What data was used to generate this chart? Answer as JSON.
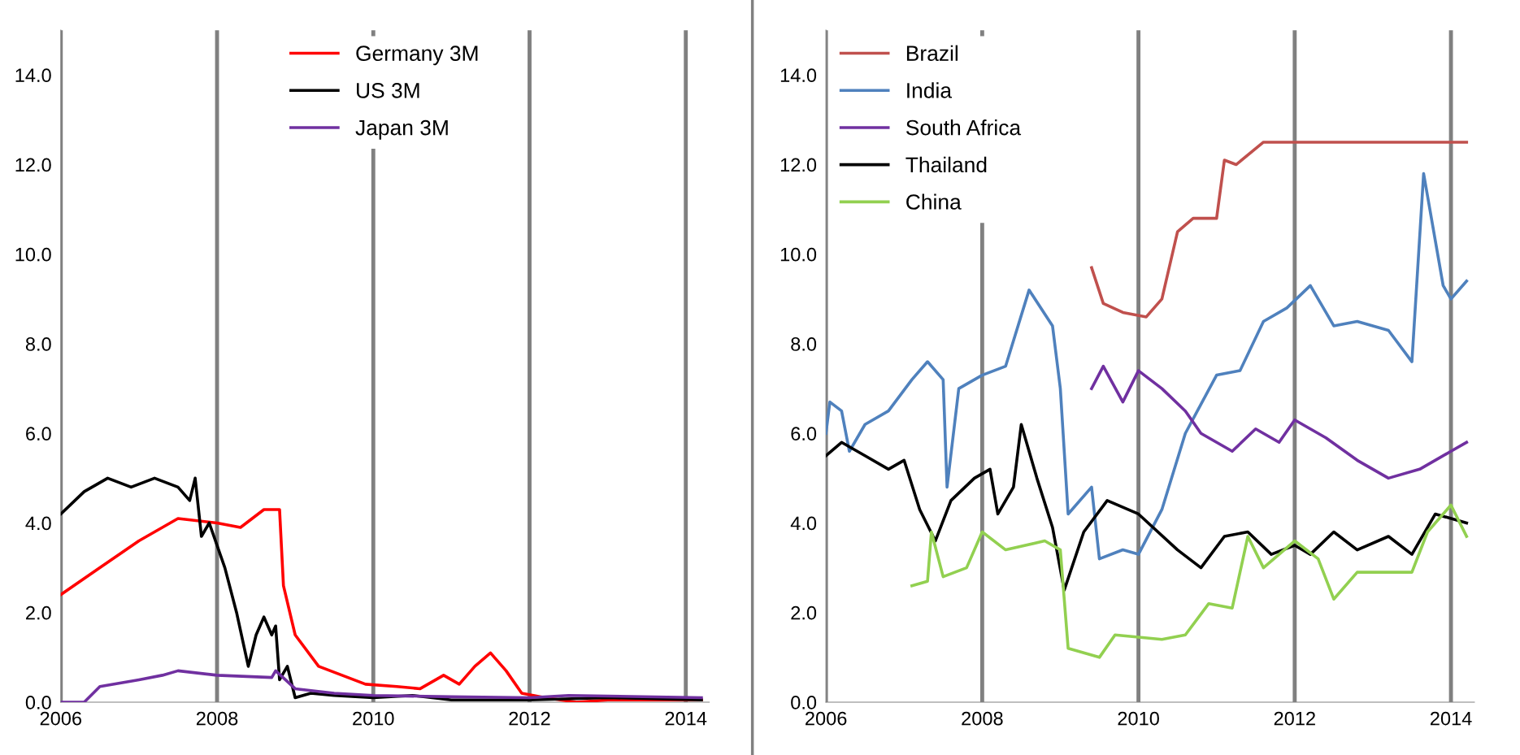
{
  "chart_data": [
    {
      "type": "line",
      "xlim": [
        2006,
        2014.3
      ],
      "ylim": [
        0,
        15
      ],
      "xticks": [
        2006,
        2008,
        2010,
        2012,
        2014
      ],
      "yticks": [
        {
          "value": 0,
          "label": "0.0"
        },
        {
          "value": 2,
          "label": "2.0"
        },
        {
          "value": 4,
          "label": "4.0"
        },
        {
          "value": 6,
          "label": "6.0"
        },
        {
          "value": 8,
          "label": "8.0"
        },
        {
          "value": 10,
          "label": "10.0"
        },
        {
          "value": 12,
          "label": "12.0"
        },
        {
          "value": 14,
          "label": "14.0"
        }
      ],
      "grid": "x",
      "legend": "top",
      "marker": "none",
      "line_style": "solid",
      "series": [
        {
          "name": "Germany 3M",
          "color": "#ff0000",
          "x": [
            2006.0,
            2006.5,
            2007.0,
            2007.5,
            2008.0,
            2008.3,
            2008.6,
            2008.8,
            2008.85,
            2009.0,
            2009.3,
            2009.6,
            2009.9,
            2010.3,
            2010.6,
            2010.9,
            2011.1,
            2011.3,
            2011.5,
            2011.7,
            2011.9,
            2012.2,
            2012.6,
            2013.0,
            2014.2
          ],
          "values": [
            2.4,
            3.0,
            3.6,
            4.1,
            4.0,
            3.9,
            4.3,
            4.3,
            2.6,
            1.5,
            0.8,
            0.6,
            0.4,
            0.35,
            0.3,
            0.6,
            0.4,
            0.8,
            1.1,
            0.7,
            0.2,
            0.1,
            0.0,
            0.05,
            0.05
          ]
        },
        {
          "name": "US 3M",
          "color": "#000000",
          "x": [
            2006.0,
            2006.3,
            2006.6,
            2006.9,
            2007.2,
            2007.5,
            2007.65,
            2007.72,
            2007.8,
            2007.9,
            2008.1,
            2008.25,
            2008.4,
            2008.5,
            2008.6,
            2008.7,
            2008.75,
            2008.8,
            2008.9,
            2009.0,
            2009.2,
            2009.5,
            2010.0,
            2010.5,
            2011.0,
            2012.0,
            2013.0,
            2014.2
          ],
          "values": [
            4.2,
            4.7,
            5.0,
            4.8,
            5.0,
            4.8,
            4.5,
            5.0,
            3.7,
            4.0,
            3.0,
            2.0,
            0.8,
            1.5,
            1.9,
            1.5,
            1.7,
            0.5,
            0.8,
            0.1,
            0.2,
            0.15,
            0.1,
            0.15,
            0.05,
            0.05,
            0.1,
            0.05
          ]
        },
        {
          "name": "Japan 3M",
          "color": "#7030a0",
          "x": [
            2006.0,
            2006.3,
            2006.5,
            2007.0,
            2007.3,
            2007.5,
            2008.0,
            2008.7,
            2008.75,
            2009.0,
            2009.5,
            2010.0,
            2011.0,
            2012.0,
            2012.5,
            2014.2
          ],
          "values": [
            0.0,
            0.0,
            0.35,
            0.5,
            0.6,
            0.7,
            0.6,
            0.55,
            0.7,
            0.3,
            0.2,
            0.15,
            0.12,
            0.1,
            0.15,
            0.1
          ]
        }
      ]
    },
    {
      "type": "line",
      "xlim": [
        2006,
        2014.3
      ],
      "ylim": [
        0,
        15
      ],
      "xticks": [
        2006,
        2008,
        2010,
        2012,
        2014
      ],
      "yticks": [
        {
          "value": 0,
          "label": "0.0"
        },
        {
          "value": 2,
          "label": "2.0"
        },
        {
          "value": 4,
          "label": "4.0"
        },
        {
          "value": 6,
          "label": "6.0"
        },
        {
          "value": 8,
          "label": "8.0"
        },
        {
          "value": 10,
          "label": "10.0"
        },
        {
          "value": 12,
          "label": "12.0"
        },
        {
          "value": 14,
          "label": "14.0"
        }
      ],
      "grid": "x",
      "legend": "top left",
      "marker": "none",
      "line_style": "solid",
      "series": [
        {
          "name": "Brazil",
          "color": "#c0504d",
          "x": [
            2009.4,
            2009.55,
            2009.8,
            2010.1,
            2010.3,
            2010.5,
            2010.7,
            2011.0,
            2011.1,
            2011.25,
            2011.6,
            2014.2
          ],
          "values": [
            9.7,
            8.9,
            8.7,
            8.6,
            9.0,
            10.5,
            10.8,
            10.8,
            12.1,
            12.0,
            12.5,
            12.5
          ]
        },
        {
          "name": "India",
          "color": "#4f81bd",
          "x": [
            2006.0,
            2006.05,
            2006.2,
            2006.3,
            2006.5,
            2006.8,
            2007.1,
            2007.3,
            2007.5,
            2007.55,
            2007.7,
            2008.0,
            2008.3,
            2008.6,
            2008.9,
            2009.0,
            2009.1,
            2009.4,
            2009.5,
            2009.8,
            2010.0,
            2010.3,
            2010.6,
            2011.0,
            2011.3,
            2011.6,
            2011.9,
            2012.2,
            2012.5,
            2012.8,
            2013.2,
            2013.5,
            2013.65,
            2013.9,
            2014.0,
            2014.2
          ],
          "values": [
            6.0,
            6.7,
            6.5,
            5.6,
            6.2,
            6.5,
            7.2,
            7.6,
            7.2,
            4.8,
            7.0,
            7.3,
            7.5,
            9.2,
            8.4,
            7.0,
            4.2,
            4.8,
            3.2,
            3.4,
            3.3,
            4.3,
            6.0,
            7.3,
            7.4,
            8.5,
            8.8,
            9.3,
            8.4,
            8.5,
            8.3,
            7.6,
            11.8,
            9.3,
            9.0,
            9.4
          ]
        },
        {
          "name": "South Africa",
          "color": "#7030a0",
          "x": [
            2009.4,
            2009.55,
            2009.8,
            2010.0,
            2010.3,
            2010.6,
            2010.8,
            2011.2,
            2011.5,
            2011.8,
            2012.0,
            2012.4,
            2012.8,
            2013.2,
            2013.6,
            2014.0,
            2014.2
          ],
          "values": [
            7.0,
            7.5,
            6.7,
            7.4,
            7.0,
            6.5,
            6.0,
            5.6,
            6.1,
            5.8,
            6.3,
            5.9,
            5.4,
            5.0,
            5.2,
            5.6,
            5.8
          ]
        },
        {
          "name": "Thailand",
          "color": "#000000",
          "x": [
            2006.0,
            2006.2,
            2006.5,
            2006.8,
            2007.0,
            2007.2,
            2007.4,
            2007.6,
            2007.9,
            2008.1,
            2008.2,
            2008.4,
            2008.5,
            2008.7,
            2008.9,
            2009.05,
            2009.3,
            2009.6,
            2010.0,
            2010.5,
            2010.8,
            2011.1,
            2011.4,
            2011.7,
            2012.0,
            2012.2,
            2012.5,
            2012.8,
            2013.2,
            2013.5,
            2013.8,
            2014.2
          ],
          "values": [
            5.5,
            5.8,
            5.5,
            5.2,
            5.4,
            4.3,
            3.6,
            4.5,
            5.0,
            5.2,
            4.2,
            4.8,
            6.2,
            5.0,
            3.9,
            2.5,
            3.8,
            4.5,
            4.2,
            3.4,
            3.0,
            3.7,
            3.8,
            3.3,
            3.5,
            3.3,
            3.8,
            3.4,
            3.7,
            3.3,
            4.2,
            4.0
          ]
        },
        {
          "name": "China",
          "color": "#92d050",
          "x": [
            2007.1,
            2007.3,
            2007.35,
            2007.5,
            2007.8,
            2008.0,
            2008.3,
            2008.8,
            2009.0,
            2009.1,
            2009.5,
            2009.7,
            2010.3,
            2010.6,
            2010.9,
            2011.2,
            2011.4,
            2011.6,
            2012.0,
            2012.3,
            2012.5,
            2012.8,
            2013.5,
            2013.7,
            2014.0,
            2014.2
          ],
          "values": [
            2.6,
            2.7,
            3.8,
            2.8,
            3.0,
            3.8,
            3.4,
            3.6,
            3.4,
            1.2,
            1.0,
            1.5,
            1.4,
            1.5,
            2.2,
            2.1,
            3.7,
            3.0,
            3.6,
            3.2,
            2.3,
            2.9,
            2.9,
            3.8,
            4.4,
            3.7
          ]
        }
      ]
    }
  ]
}
